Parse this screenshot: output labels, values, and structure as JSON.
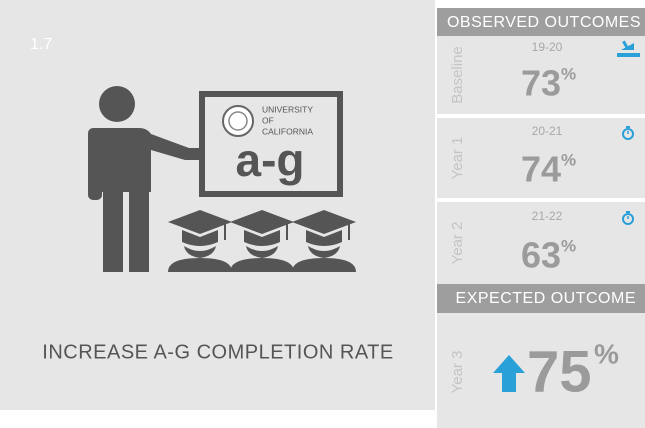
{
  "badge": "1.7",
  "board": {
    "line1": "UNIVERSITY",
    "line2": "OF",
    "line3": "CALIFORNIA",
    "big": "a-g"
  },
  "title": "INCREASE A-G COMPLETION RATE",
  "observed": {
    "heading": "OBSERVED OUTCOMES",
    "rows": [
      {
        "label": "Baseline",
        "period": "19-20",
        "value": "73",
        "unit": "%"
      },
      {
        "label": "Year 1",
        "period": "20-21",
        "value": "74",
        "unit": "%"
      },
      {
        "label": "Year 2",
        "period": "21-22",
        "value": "63",
        "unit": "%"
      }
    ]
  },
  "expected": {
    "heading": "EXPECTED OUTCOME",
    "label": "Year 3",
    "value": "75",
    "unit": "%"
  }
}
